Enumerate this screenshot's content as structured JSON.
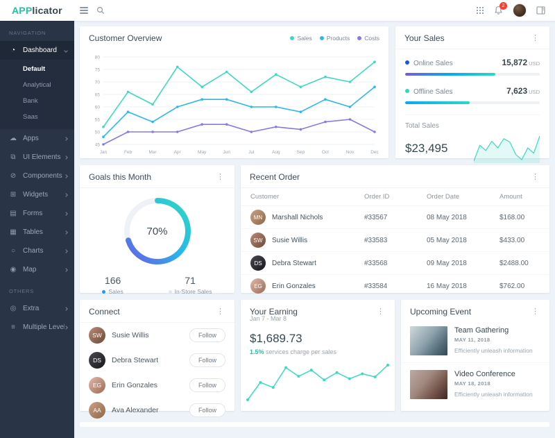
{
  "header": {
    "logo_accent": "APP",
    "logo_rest": "licator",
    "notification_count": "2"
  },
  "sidebar": {
    "section1_label": "NAVIGATION",
    "dashboard": {
      "label": "Dashboard",
      "children": [
        "Default",
        "Analytical",
        "Bank",
        "Saas"
      ],
      "active_child": "Default"
    },
    "items": [
      "Apps",
      "UI Elements",
      "Components",
      "Widgets",
      "Forms",
      "Tables",
      "Charts",
      "Map"
    ],
    "section2_label": "OTHERS",
    "others": [
      "Extra",
      "Multiple Levels"
    ]
  },
  "overview": {
    "title": "Customer Overview"
  },
  "your_sales": {
    "title": "Your Sales",
    "online_label": "Online Sales",
    "online_value": "15,872",
    "online_unit": "USD",
    "online_pct": 67,
    "offline_label": "Offline Sales",
    "offline_value": "7,623",
    "offline_unit": "USD",
    "offline_pct": 48,
    "total_label": "Total Sales",
    "total_value": "$23,495"
  },
  "goals": {
    "title": "Goals this Month",
    "percent": "70%",
    "stats": [
      {
        "value": "166",
        "label": "Sales"
      },
      {
        "value": "71",
        "label": "In-Store Sales"
      }
    ]
  },
  "recent_order": {
    "title": "Recent Order",
    "headers": [
      "Customer",
      "Order ID",
      "Order Date",
      "Amount"
    ],
    "rows": [
      {
        "customer": "Marshall Nichols",
        "order_id": "#33567",
        "order_date": "08 May 2018",
        "amount": "$168.00"
      },
      {
        "customer": "Susie Willis",
        "order_id": "#33583",
        "order_date": "05 May 2018",
        "amount": "$433.00"
      },
      {
        "customer": "Debra Stewart",
        "order_id": "#33568",
        "order_date": "09 May 2018",
        "amount": "$2488.00"
      },
      {
        "customer": "Erin Gonzales",
        "order_id": "#33584",
        "order_date": "16 May 2018",
        "amount": "$762.00"
      }
    ]
  },
  "connect": {
    "title": "Connect",
    "follow_label": "Follow",
    "people": [
      {
        "name": "Susie Willis"
      },
      {
        "name": "Debra Stewart"
      },
      {
        "name": "Erin Gonzales"
      },
      {
        "name": "Ava Alexander"
      }
    ]
  },
  "earning": {
    "title": "Your Earning",
    "range": "Jan 7 - Mar 8",
    "amount": "$1,689.73",
    "note_accent": "1.5%",
    "note_rest": " services charge per sales"
  },
  "events": {
    "title": "Upcoming Event",
    "items": [
      {
        "title": "Team Gathering",
        "date": "MAY 11, 2018",
        "desc": "Efficiently unleash information"
      },
      {
        "title": "Video Conference",
        "date": "MAY 18, 2018",
        "desc": "Efficiently unleash information"
      }
    ]
  },
  "colors": {
    "teal": "#2ed8c3",
    "blue": "#2eb7e8",
    "purple": "#8a7ae0",
    "online_dot": "#1b55e2",
    "offline_dot": "#2ed8c3",
    "online_bar": "linear-gradient(90deg,#7759de,#04a9f5,#2ed8c3)",
    "offline_bar": "linear-gradient(90deg,#04a9f5,#2ed8c3)",
    "sales_stat_dot": "#2196f3",
    "instore_stat_dot": "#dfe6ec"
  },
  "chart_data": [
    {
      "name": "customer-overview",
      "type": "line",
      "title": "Customer Overview",
      "x": [
        "Jan",
        "Feb",
        "Mar",
        "Apr",
        "May",
        "Jun",
        "Jul",
        "Aug",
        "Sep",
        "Oct",
        "Nov",
        "Dec"
      ],
      "ylim": [
        45,
        80
      ],
      "yticks": [
        45,
        50,
        55,
        60,
        65,
        70,
        75,
        80
      ],
      "grid": true,
      "legend_position": "top-right",
      "series": [
        {
          "name": "Sales",
          "color": "#3fd8c2",
          "values": [
            52,
            66,
            61,
            76,
            68,
            74,
            66,
            73,
            68,
            72,
            70,
            78
          ]
        },
        {
          "name": "Products",
          "color": "#2eb7e8",
          "values": [
            48,
            58,
            54,
            60,
            63,
            63,
            60,
            60,
            58,
            63,
            60,
            68
          ]
        },
        {
          "name": "Costs",
          "color": "#8a7ae0",
          "values": [
            45,
            50,
            50,
            50,
            53,
            53,
            50,
            52,
            51,
            54,
            55,
            50
          ]
        }
      ]
    },
    {
      "name": "total-sales-sparkline",
      "type": "area",
      "color": "#3fd8c2",
      "values": [
        28,
        52,
        44,
        58,
        48,
        62,
        57,
        38,
        30,
        48,
        40,
        66
      ]
    },
    {
      "name": "goals-donut",
      "type": "donut",
      "percent": 70,
      "gradient": [
        "#6a5be2",
        "#29b6e8",
        "#2ed8c3"
      ],
      "track_color": "#eef1f5"
    },
    {
      "name": "earning-line",
      "type": "line",
      "color": "#3fd8c2",
      "values": [
        8,
        36,
        28,
        60,
        46,
        56,
        40,
        52,
        42,
        50,
        45,
        64
      ]
    }
  ]
}
